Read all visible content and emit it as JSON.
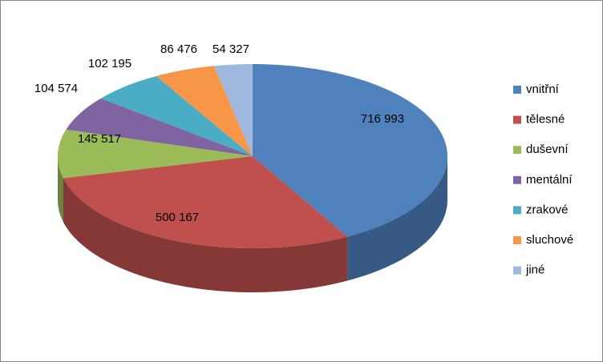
{
  "chart_data": {
    "type": "pie",
    "categories": [
      "vnitřní",
      "tělesné",
      "duševní",
      "mentální",
      "zrakové",
      "sluchové",
      "jiné"
    ],
    "values": [
      716993,
      500167,
      145517,
      104574,
      102195,
      86476,
      54327
    ],
    "value_labels": [
      "716 993",
      "500 167",
      "145 517",
      "104 574",
      "102 195",
      "86 476",
      "54 327"
    ],
    "colors": [
      "#4f81bd",
      "#c0504d",
      "#9bbb59",
      "#8064a2",
      "#4bacc6",
      "#f79646",
      "#a0b8de"
    ],
    "legend": "right"
  }
}
